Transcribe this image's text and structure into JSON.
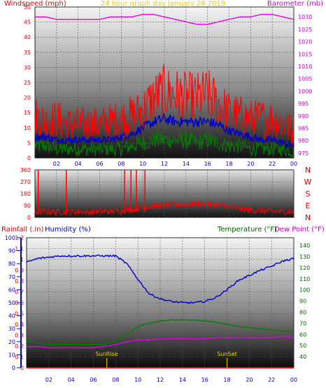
{
  "chart_data": [
    {
      "type": "line",
      "title": "24 hour graph day   January 26 2019",
      "ylabel_left": "Windspeed (mph)",
      "ylabel_right": "Barometer (mb)",
      "x_ticks": [
        "02",
        "04",
        "06",
        "08",
        "10",
        "12",
        "14",
        "16",
        "18",
        "20",
        "22",
        "00"
      ],
      "y_left_ticks": [
        "0",
        "5",
        "10",
        "15",
        "20",
        "25",
        "30",
        "35",
        "40",
        "45",
        "50"
      ],
      "y_right_ticks": [
        "975",
        "980",
        "985",
        "990",
        "995",
        "1000",
        "1005",
        "1010",
        "1015",
        "1020",
        "1025",
        "1030"
      ],
      "ylim_left": [
        0,
        50
      ],
      "ylim_right": [
        973,
        1034
      ],
      "colors": {
        "gust": "#ff0000",
        "avg": "#0000c8",
        "lull": "#008000",
        "barometer": "#e000e0"
      },
      "series": [
        {
          "key": "gust",
          "x": [
            0,
            1,
            2,
            3,
            4,
            5,
            6,
            7,
            8,
            9,
            10,
            11,
            12,
            13,
            14,
            15,
            16,
            17,
            18,
            19,
            20,
            21,
            22,
            23,
            24
          ],
          "values": [
            14,
            12,
            13,
            11,
            11,
            11,
            11,
            12,
            13,
            14,
            16,
            20,
            22,
            21,
            20,
            20,
            21,
            18,
            15,
            14,
            13,
            13,
            13,
            11,
            9
          ]
        },
        {
          "key": "avg",
          "x": [
            0,
            1,
            2,
            3,
            4,
            5,
            6,
            7,
            8,
            9,
            10,
            11,
            12,
            13,
            14,
            15,
            16,
            17,
            18,
            19,
            20,
            21,
            22,
            23,
            24
          ],
          "values": [
            7,
            7,
            6,
            6,
            6,
            6,
            6,
            6,
            7,
            8,
            10,
            12,
            13,
            12,
            12,
            12,
            12,
            11,
            9,
            8,
            7,
            6,
            6,
            5,
            4
          ]
        },
        {
          "key": "lull",
          "x": [
            0,
            1,
            2,
            3,
            4,
            5,
            6,
            7,
            8,
            9,
            10,
            11,
            12,
            13,
            14,
            15,
            16,
            17,
            18,
            19,
            20,
            21,
            22,
            23,
            24
          ],
          "values": [
            4,
            4,
            3,
            3,
            3,
            3,
            3,
            3,
            3,
            4,
            5,
            6,
            6,
            6,
            6,
            5,
            6,
            5,
            4,
            4,
            3,
            3,
            3,
            3,
            2
          ]
        },
        {
          "key": "barometer",
          "x": [
            0,
            1,
            2,
            3,
            4,
            5,
            6,
            7,
            8,
            9,
            10,
            11,
            12,
            13,
            14,
            15,
            16,
            17,
            18,
            19,
            20,
            21,
            22,
            23,
            24
          ],
          "values": [
            1030,
            1030,
            1029,
            1029,
            1029,
            1029,
            1029,
            1030,
            1030,
            1030,
            1031,
            1031,
            1030,
            1029,
            1028,
            1027,
            1027,
            1028,
            1029,
            1030,
            1030,
            1031,
            1031,
            1030,
            1029
          ]
        }
      ]
    },
    {
      "type": "scatter",
      "ylabel_right": [
        "N",
        "W",
        "S",
        "E",
        "N"
      ],
      "x_ticks": [
        "02",
        "04",
        "06",
        "08",
        "10",
        "12",
        "14",
        "16",
        "18",
        "20",
        "22",
        "00"
      ],
      "y_left_ticks": [
        "0",
        "90",
        "180",
        "270",
        "360"
      ],
      "ylim": [
        0,
        360
      ],
      "color": "#ff0000",
      "series": [
        {
          "key": "direction",
          "x": [
            0,
            1,
            2,
            3,
            4,
            5,
            6,
            7,
            8,
            9,
            10,
            11,
            12,
            13,
            14,
            15,
            16,
            17,
            18,
            19,
            20,
            21,
            22,
            23,
            24
          ],
          "values": [
            40,
            45,
            40,
            40,
            45,
            40,
            45,
            45,
            50,
            60,
            75,
            85,
            90,
            95,
            100,
            105,
            100,
            95,
            80,
            65,
            55,
            50,
            45,
            45,
            40
          ]
        }
      ],
      "spikes": [
        0.3,
        2.9,
        8.3,
        8.9,
        9.4,
        10.2
      ]
    },
    {
      "type": "line",
      "ylabel_left": "Rainfall (.in)",
      "ylabel_left2": "Humidity (%)",
      "ylabel_right": "Temperature (°F)",
      "ylabel_right2": "Dew Point (°F)",
      "x_ticks": [
        "02",
        "04",
        "06",
        "08",
        "10",
        "12",
        "14",
        "16",
        "18",
        "20",
        "22",
        "00"
      ],
      "rain_ticks": [
        "0",
        "0.1",
        "0.2",
        "0.3",
        "0.4",
        "0.5",
        "0.6",
        "0.7",
        "0.8",
        "0.9",
        "1",
        "1.1",
        "1.2"
      ],
      "humidity_ticks": [
        "0",
        "10",
        "20",
        "30",
        "40",
        "50",
        "60",
        "70",
        "80",
        "90",
        "100"
      ],
      "temp_ticks": [
        "40",
        "50",
        "60",
        "70",
        "80",
        "90",
        "100",
        "110",
        "120",
        "130",
        "140"
      ],
      "ylim_rain": [
        0,
        1.2
      ],
      "ylim_humidity": [
        0,
        100
      ],
      "ylim_temp": [
        30,
        147
      ],
      "annotations": [
        {
          "text": "SunRise",
          "x": 7.2
        },
        {
          "text": "SunSet",
          "x": 18.0
        }
      ],
      "colors": {
        "humidity": "#0000c8",
        "temperature": "#008000",
        "dewpoint": "#e000e0",
        "rain": "#ff0000"
      },
      "series": [
        {
          "key": "humidity",
          "x": [
            0,
            1,
            2,
            3,
            4,
            5,
            6,
            7,
            8,
            9,
            10,
            11,
            12,
            13,
            14,
            15,
            16,
            17,
            18,
            19,
            20,
            21,
            22,
            23,
            24
          ],
          "values": [
            81,
            84,
            85,
            86,
            86,
            86,
            86,
            86,
            86,
            80,
            68,
            57,
            53,
            51,
            50,
            50,
            51,
            54,
            60,
            67,
            71,
            75,
            78,
            82,
            84
          ]
        },
        {
          "key": "temperature",
          "x": [
            0,
            1,
            2,
            3,
            4,
            5,
            6,
            7,
            8,
            9,
            10,
            11,
            12,
            13,
            14,
            15,
            16,
            17,
            18,
            19,
            20,
            21,
            22,
            23,
            24
          ],
          "values": [
            54,
            52,
            51,
            51,
            51,
            51,
            51,
            51,
            54,
            60,
            67,
            70,
            72,
            73,
            73,
            73,
            72,
            71,
            69,
            67,
            66,
            65,
            64,
            63,
            63
          ]
        },
        {
          "key": "dewpoint",
          "x": [
            0,
            1,
            2,
            3,
            4,
            5,
            6,
            7,
            8,
            9,
            10,
            11,
            12,
            13,
            14,
            15,
            16,
            17,
            18,
            19,
            20,
            21,
            22,
            23,
            24
          ],
          "values": [
            49,
            49,
            48,
            48,
            48,
            48,
            48,
            49,
            51,
            53,
            55,
            55,
            56,
            56,
            56,
            56,
            56,
            57,
            57,
            57,
            57,
            57,
            57,
            58,
            57
          ]
        }
      ]
    }
  ]
}
